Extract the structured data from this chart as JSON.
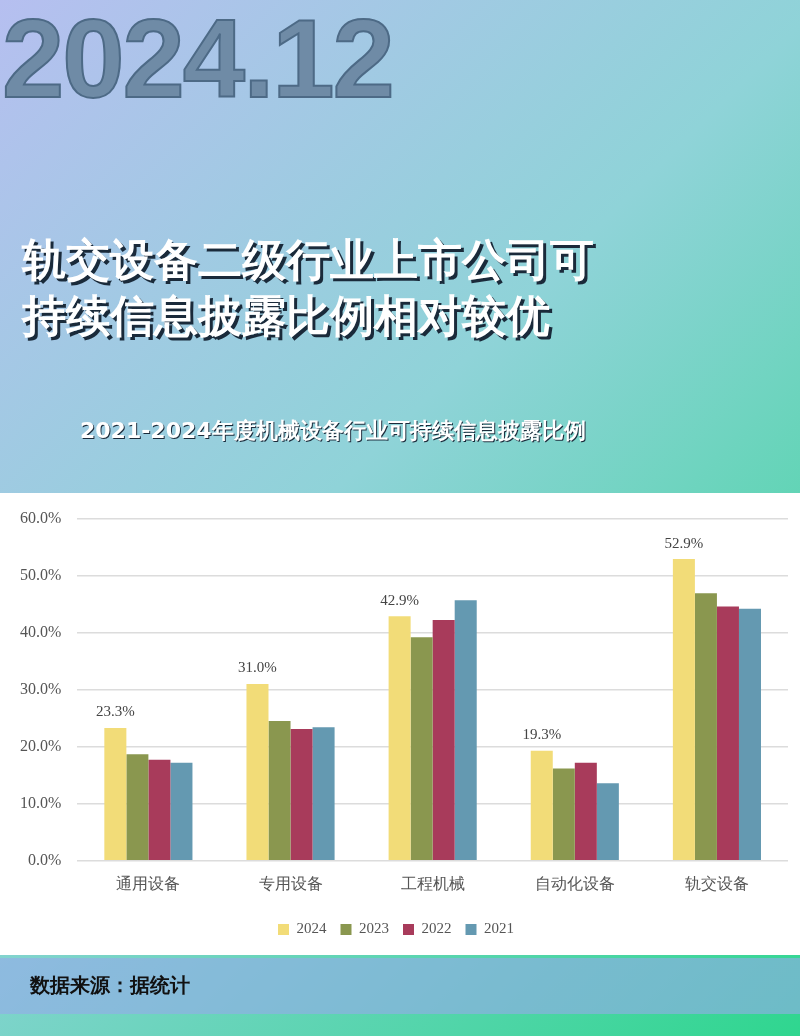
{
  "chart_data": {
    "type": "bar",
    "title": "轨交设备二级行业上市公司可持续信息披露比例相对较优",
    "subtitle": "2021-2024年度机械设备行业可持续信息披露比例",
    "categories": [
      "通用设备",
      "专用设备",
      "工程机械",
      "自动化设备",
      "轨交设备"
    ],
    "series": [
      {
        "name": "2024",
        "color": "#f2dc78",
        "values": [
          23.3,
          31.0,
          42.9,
          19.3,
          52.9
        ],
        "value_labels": [
          "23.3%",
          "31.0%",
          "42.9%",
          "19.3%",
          "52.9%"
        ]
      },
      {
        "name": "2023",
        "color": "#8a974f",
        "values": [
          18.7,
          24.5,
          39.2,
          16.2,
          46.9
        ]
      },
      {
        "name": "2022",
        "color": "#a83b5b",
        "values": [
          17.7,
          23.1,
          42.2,
          17.2,
          44.6
        ]
      },
      {
        "name": "2021",
        "color": "#6499b1",
        "values": [
          17.2,
          23.4,
          45.7,
          13.6,
          44.2
        ]
      }
    ],
    "ylim": [
      0,
      60
    ],
    "yticks": [
      {
        "value": 0,
        "label": "0.0%"
      },
      {
        "value": 10,
        "label": "10.0%"
      },
      {
        "value": 20,
        "label": "20.0%"
      },
      {
        "value": 30,
        "label": "30.0%"
      },
      {
        "value": 40,
        "label": "40.0%"
      },
      {
        "value": 50,
        "label": "50.0%"
      },
      {
        "value": 60,
        "label": "60.0%"
      }
    ],
    "grid": "y",
    "legend": "bottom",
    "annotations": [
      "2024.12",
      "数据来源：据统计"
    ]
  }
}
